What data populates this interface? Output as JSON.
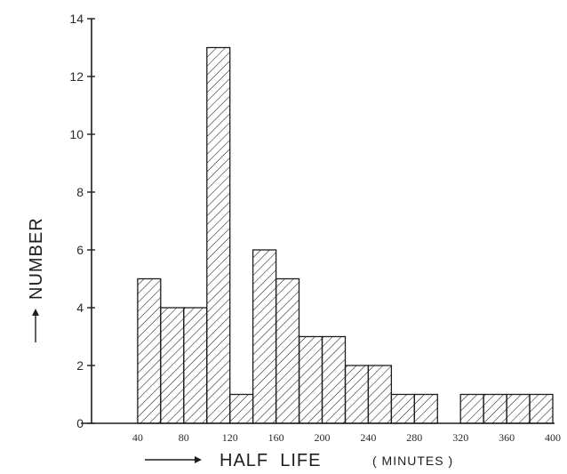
{
  "chart_data": {
    "type": "bar",
    "xlabel": "HALF  LIFE",
    "xlabel_unit": "( MINUTES )",
    "ylabel": "NUMBER",
    "ylim": [
      0,
      14
    ],
    "xlim": [
      0,
      400
    ],
    "grid": false,
    "y_ticks": [
      0,
      2,
      4,
      6,
      8,
      10,
      12,
      14
    ],
    "y_tick_labels": [
      "0",
      "2",
      "4",
      "6",
      "8",
      "10",
      "12",
      "14"
    ],
    "x_ticks": [
      40,
      80,
      120,
      160,
      200,
      240,
      280,
      320,
      360,
      400
    ],
    "x_tick_labels": [
      "40",
      "80",
      "120",
      "160",
      "200",
      "240",
      "280",
      "320",
      "360",
      "400"
    ],
    "bin_width": 20,
    "bins": [
      {
        "start": 40,
        "end": 60,
        "value": 5
      },
      {
        "start": 60,
        "end": 80,
        "value": 4
      },
      {
        "start": 80,
        "end": 100,
        "value": 4
      },
      {
        "start": 100,
        "end": 120,
        "value": 13
      },
      {
        "start": 120,
        "end": 140,
        "value": 1
      },
      {
        "start": 140,
        "end": 160,
        "value": 6
      },
      {
        "start": 160,
        "end": 180,
        "value": 5
      },
      {
        "start": 180,
        "end": 200,
        "value": 3
      },
      {
        "start": 200,
        "end": 220,
        "value": 3
      },
      {
        "start": 220,
        "end": 240,
        "value": 2
      },
      {
        "start": 240,
        "end": 260,
        "value": 2
      },
      {
        "start": 260,
        "end": 280,
        "value": 1
      },
      {
        "start": 280,
        "end": 300,
        "value": 1
      },
      {
        "start": 320,
        "end": 340,
        "value": 1
      },
      {
        "start": 340,
        "end": 360,
        "value": 1
      },
      {
        "start": 360,
        "end": 380,
        "value": 1
      },
      {
        "start": 380,
        "end": 400,
        "value": 1
      }
    ],
    "fill_pattern": "diagonal-hatch",
    "color": "#1d1d1d"
  }
}
